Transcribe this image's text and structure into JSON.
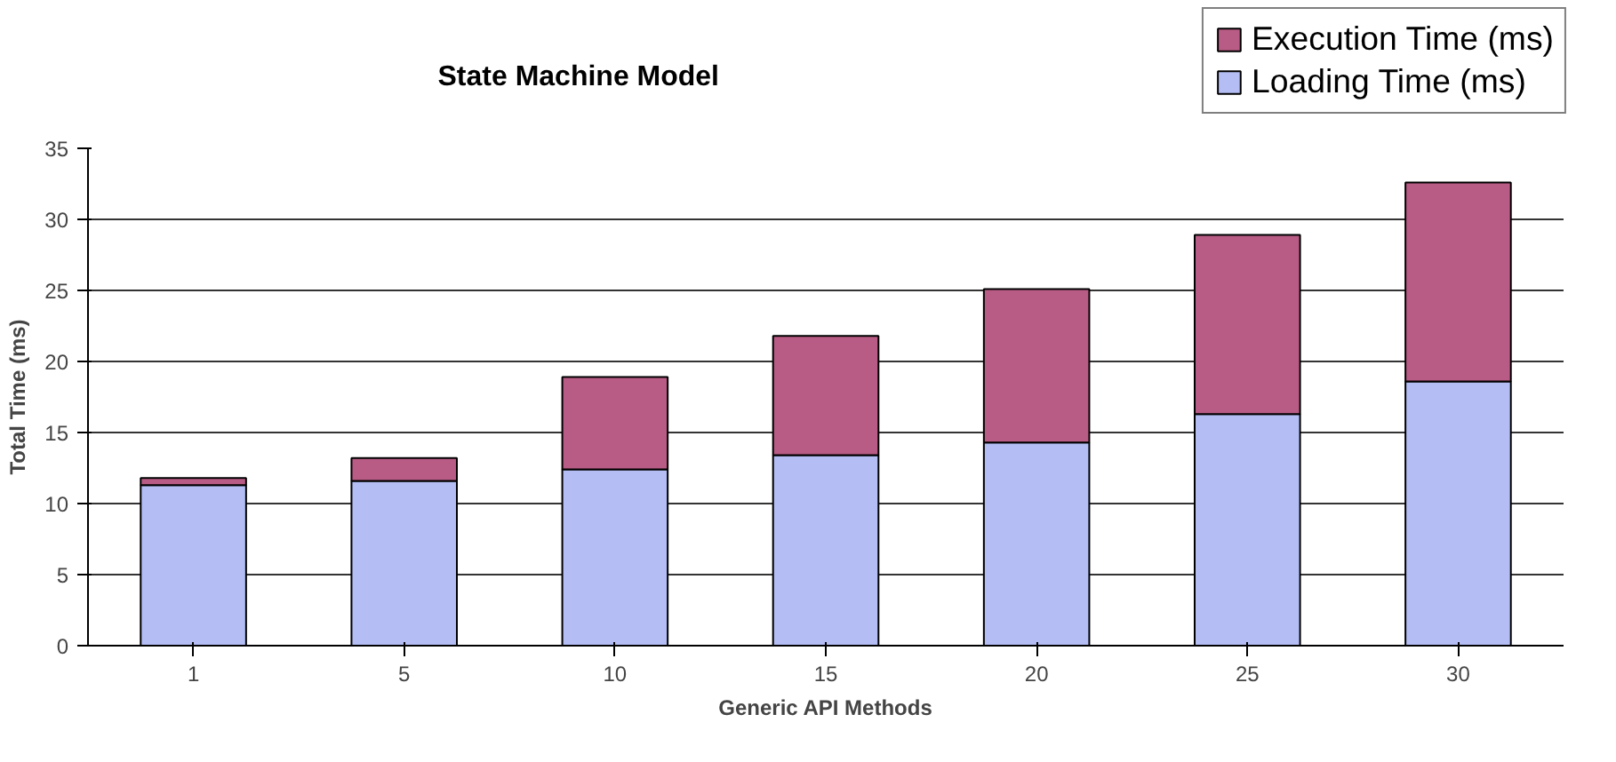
{
  "chart_data": {
    "type": "bar",
    "title": "State Machine Model",
    "xlabel": "Generic API Methods",
    "ylabel": "Total Time (ms)",
    "categories": [
      "1",
      "5",
      "10",
      "15",
      "20",
      "25",
      "30"
    ],
    "stacked": true,
    "series": [
      {
        "name": "Loading Time (ms)",
        "color": "#b4bef5",
        "values": [
          11.3,
          11.6,
          12.4,
          13.4,
          14.3,
          16.3,
          18.6
        ]
      },
      {
        "name": "Execution Time (ms)",
        "color": "#b85c85",
        "values": [
          0.5,
          1.6,
          6.5,
          8.4,
          10.8,
          12.6,
          14.0
        ]
      }
    ],
    "ylim": [
      0,
      35
    ],
    "yticks": [
      0,
      5,
      10,
      15,
      20,
      25,
      30,
      35
    ],
    "grid": "y",
    "legend": "top right"
  }
}
